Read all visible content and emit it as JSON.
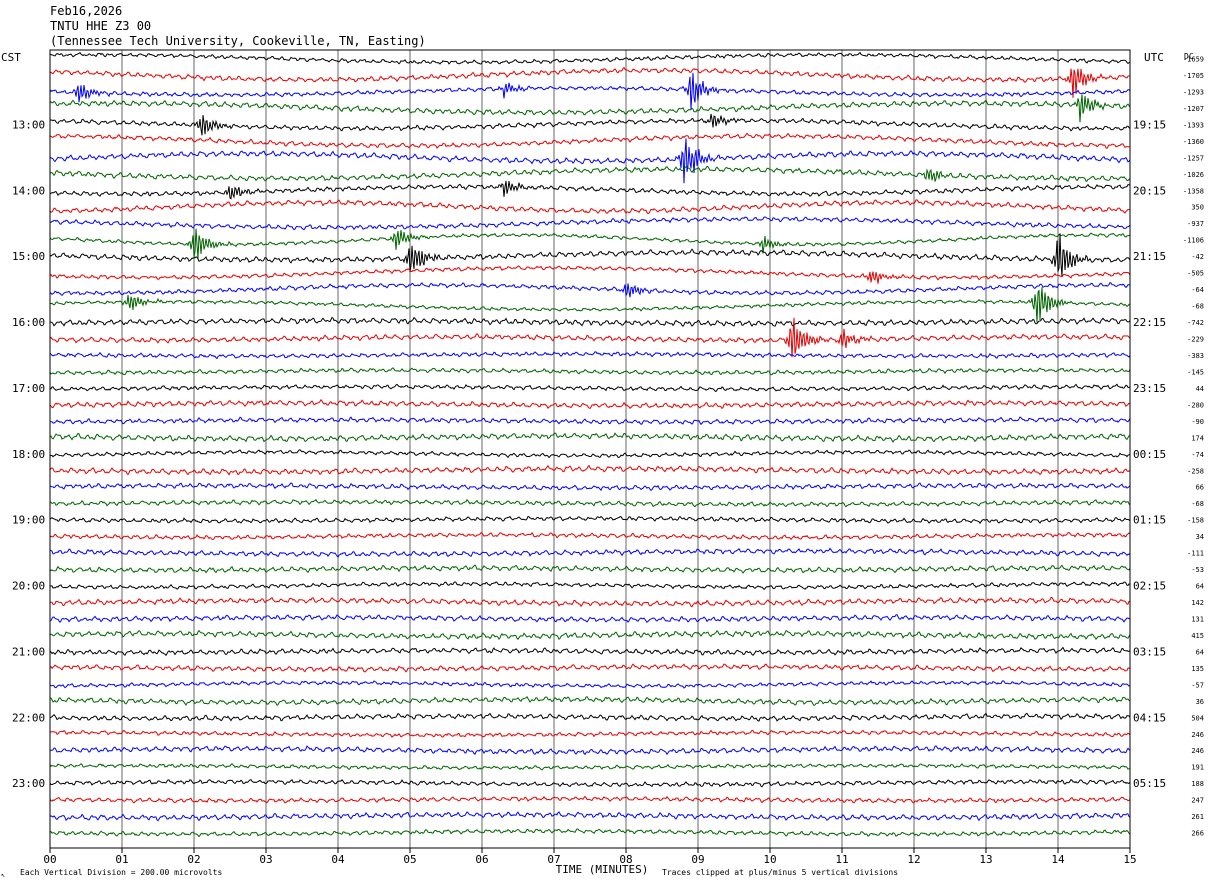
{
  "header": {
    "date": "Feb16,2026",
    "station": "TNTU HHE Z3 00",
    "location": "(Tennessee Tech University, Cookeville, TN, Easting)"
  },
  "labels": {
    "left_tz": "CST",
    "right_tz": "UTC",
    "dc_label": "DC",
    "xlabel": "TIME (MINUTES)",
    "scale_note": "Each Vertical Division =  200.00 microvolts",
    "clip_note": "Traces clipped at plus/minus 5 vertical divisions",
    "corner_mark": "↖"
  },
  "chart_data": {
    "type": "line",
    "title": "TNTU HHE Z3 00",
    "xlabel": "TIME (MINUTES)",
    "xlim": [
      0,
      15
    ],
    "x_ticks": [
      "00",
      "01",
      "02",
      "03",
      "04",
      "05",
      "06",
      "07",
      "08",
      "09",
      "10",
      "11",
      "12",
      "13",
      "14",
      "15"
    ],
    "trace_colors": [
      "#000000",
      "#e60000",
      "#0000ff",
      "#006400"
    ],
    "trace_count": 48,
    "left_time_labels": [
      {
        "trace": 4,
        "label": "13:00"
      },
      {
        "trace": 8,
        "label": "14:00"
      },
      {
        "trace": 12,
        "label": "15:00"
      },
      {
        "trace": 16,
        "label": "16:00"
      },
      {
        "trace": 20,
        "label": "17:00"
      },
      {
        "trace": 24,
        "label": "18:00"
      },
      {
        "trace": 28,
        "label": "19:00"
      },
      {
        "trace": 32,
        "label": "20:00"
      },
      {
        "trace": 36,
        "label": "21:00"
      },
      {
        "trace": 40,
        "label": "22:00"
      },
      {
        "trace": 44,
        "label": "23:00"
      }
    ],
    "right_time_labels": [
      {
        "trace": 4,
        "label": "19:15"
      },
      {
        "trace": 8,
        "label": "20:15"
      },
      {
        "trace": 12,
        "label": "21:15"
      },
      {
        "trace": 16,
        "label": "22:15"
      },
      {
        "trace": 20,
        "label": "23:15"
      },
      {
        "trace": 24,
        "label": "00:15"
      },
      {
        "trace": 28,
        "label": "01:15"
      },
      {
        "trace": 32,
        "label": "02:15"
      },
      {
        "trace": 36,
        "label": "03:15"
      },
      {
        "trace": 40,
        "label": "04:15"
      },
      {
        "trace": 44,
        "label": "05:15"
      }
    ],
    "dc_offsets": [
      "-1659",
      "-1705",
      "-1293",
      "-1207",
      "-1393",
      "-1360",
      "-1257",
      "-1026",
      "-1358",
      "350",
      "-937",
      "-1106",
      "-42",
      "-505",
      "-64",
      "-68",
      "-742",
      "-229",
      "-383",
      "-145",
      "44",
      "-280",
      "-90",
      "174",
      "-74",
      "-258",
      "66",
      "-68",
      "-158",
      "34",
      "-111",
      "-53",
      "64",
      "142",
      "131",
      "415",
      "64",
      "135",
      "-57",
      "36",
      "504",
      "246",
      "246",
      "191",
      "188",
      "247",
      "261",
      "266"
    ],
    "events": [
      {
        "trace": 1,
        "minute": 14.2,
        "amp": 18
      },
      {
        "trace": 2,
        "minute": 0.4,
        "amp": 10
      },
      {
        "trace": 2,
        "minute": 6.3,
        "amp": 7
      },
      {
        "trace": 2,
        "minute": 8.9,
        "amp": 20
      },
      {
        "trace": 3,
        "minute": 14.3,
        "amp": 14
      },
      {
        "trace": 4,
        "minute": 2.1,
        "amp": 12
      },
      {
        "trace": 4,
        "minute": 9.2,
        "amp": 8
      },
      {
        "trace": 6,
        "minute": 8.8,
        "amp": 26
      },
      {
        "trace": 7,
        "minute": 12.2,
        "amp": 8
      },
      {
        "trace": 8,
        "minute": 2.5,
        "amp": 8
      },
      {
        "trace": 8,
        "minute": 6.3,
        "amp": 8
      },
      {
        "trace": 11,
        "minute": 2.0,
        "amp": 18
      },
      {
        "trace": 11,
        "minute": 4.8,
        "amp": 10
      },
      {
        "trace": 11,
        "minute": 9.9,
        "amp": 8
      },
      {
        "trace": 12,
        "minute": 5.0,
        "amp": 20
      },
      {
        "trace": 12,
        "minute": 14.0,
        "amp": 26
      },
      {
        "trace": 13,
        "minute": 11.4,
        "amp": 8
      },
      {
        "trace": 14,
        "minute": 8.0,
        "amp": 8
      },
      {
        "trace": 15,
        "minute": 1.1,
        "amp": 10
      },
      {
        "trace": 15,
        "minute": 13.7,
        "amp": 22
      },
      {
        "trace": 17,
        "minute": 10.3,
        "amp": 26
      },
      {
        "trace": 17,
        "minute": 11.0,
        "amp": 10
      }
    ]
  }
}
